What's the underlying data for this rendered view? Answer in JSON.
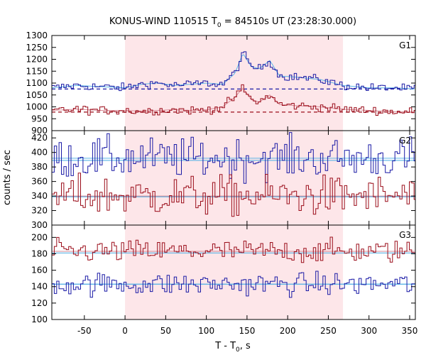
{
  "chart_data": {
    "type": "line",
    "title_prefix": "KONUS-WIND 110515 T",
    "title_sub": "0",
    "title_suffix": " = 84510s UT (23:28:30.000)",
    "xlabel_prefix": "T - T",
    "xlabel_sub": "0",
    "xlabel_suffix": ", s",
    "ylabel": "counts / sec",
    "xlim": [
      -90,
      357
    ],
    "xticks": [
      -50,
      0,
      50,
      100,
      150,
      200,
      250,
      300,
      350
    ],
    "shaded_interval": [
      0,
      268
    ],
    "colors": {
      "blue": "#1a1aa6",
      "red": "#9b0d1a",
      "fit": "#5ab4e6",
      "shade": "#fde6e9",
      "redfit": "#d88a96"
    },
    "panels": [
      {
        "name": "G1",
        "ylim": [
          900,
          1300
        ],
        "yticks": [
          900,
          950,
          1000,
          1050,
          1100,
          1150,
          1200,
          1250,
          1300
        ],
        "series": [
          {
            "color": "blue",
            "background": 1075,
            "points": [
              [
                -90,
                1080
              ],
              [
                -60,
                1090
              ],
              [
                -30,
                1085
              ],
              [
                0,
                1080
              ],
              [
                20,
                1095
              ],
              [
                40,
                1100
              ],
              [
                60,
                1090
              ],
              [
                80,
                1095
              ],
              [
                100,
                1100
              ],
              [
                120,
                1095
              ],
              [
                135,
                1140
              ],
              [
                145,
                1225
              ],
              [
                155,
                1170
              ],
              [
                165,
                1160
              ],
              [
                178,
                1195
              ],
              [
                190,
                1130
              ],
              [
                210,
                1125
              ],
              [
                240,
                1115
              ],
              [
                268,
                1090
              ],
              [
                300,
                1080
              ],
              [
                330,
                1080
              ],
              [
                357,
                1075
              ]
            ]
          },
          {
            "color": "red",
            "background": 978,
            "points": [
              [
                -90,
                985
              ],
              [
                -60,
                990
              ],
              [
                -30,
                985
              ],
              [
                0,
                985
              ],
              [
                20,
                982
              ],
              [
                40,
                985
              ],
              [
                60,
                988
              ],
              [
                80,
                985
              ],
              [
                100,
                988
              ],
              [
                120,
                1000
              ],
              [
                135,
                1040
              ],
              [
                145,
                1080
              ],
              [
                155,
                1030
              ],
              [
                165,
                1020
              ],
              [
                178,
                1050
              ],
              [
                190,
                1010
              ],
              [
                210,
                1005
              ],
              [
                240,
                1000
              ],
              [
                268,
                990
              ],
              [
                300,
                985
              ],
              [
                330,
                980
              ],
              [
                357,
                978
              ]
            ]
          }
        ]
      },
      {
        "name": "G2",
        "ylim": [
          300,
          430
        ],
        "yticks": [
          300,
          320,
          340,
          360,
          380,
          400,
          420
        ],
        "series": [
          {
            "color": "blue",
            "background": 389,
            "points": [
              [
                -90,
                392
              ],
              [
                357,
                392
              ]
            ]
          },
          {
            "color": "red",
            "background": 339,
            "points": [
              [
                -90,
                340
              ],
              [
                357,
                340
              ]
            ]
          }
        ]
      },
      {
        "name": "G3",
        "ylim": [
          100,
          215
        ],
        "yticks": [
          100,
          120,
          140,
          160,
          180,
          200
        ],
        "series": [
          {
            "color": "red",
            "background": 181,
            "points": [
              [
                -90,
                183
              ],
              [
                357,
                183
              ]
            ]
          },
          {
            "color": "blue",
            "background": 143,
            "points": [
              [
                -90,
                143
              ],
              [
                357,
                143
              ]
            ]
          }
        ]
      }
    ]
  }
}
